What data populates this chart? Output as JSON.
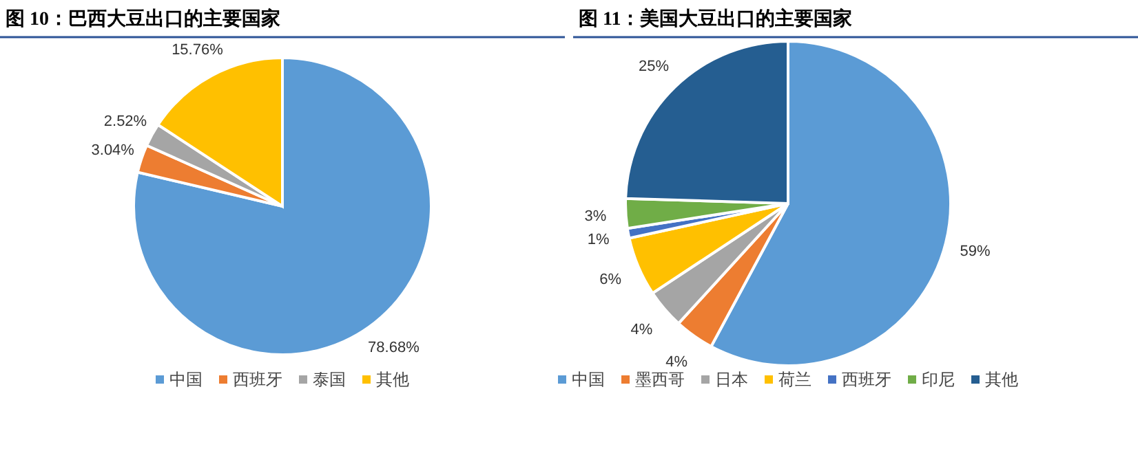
{
  "chart_data": [
    {
      "type": "pie",
      "title": "图 10：巴西大豆出口的主要国家",
      "categories": [
        "中国",
        "西班牙",
        "泰国",
        "其他"
      ],
      "values": [
        78.68,
        3.04,
        2.52,
        15.76
      ],
      "colors": [
        "#5b9bd5",
        "#ed7d31",
        "#a5a5a5",
        "#ffc000"
      ],
      "value_labels": [
        "78.68%",
        "3.04%",
        "2.52%",
        "15.76%"
      ],
      "legend": "bottom"
    },
    {
      "type": "pie",
      "title": "图 11：美国大豆出口的主要国家",
      "categories": [
        "中国",
        "墨西哥",
        "日本",
        "荷兰",
        "西班牙",
        "印尼",
        "其他"
      ],
      "values": [
        59,
        4,
        4,
        6,
        1,
        3,
        25
      ],
      "colors": [
        "#5b9bd5",
        "#ed7d31",
        "#a5a5a5",
        "#ffc000",
        "#4472c4",
        "#70ad47",
        "#255e91"
      ],
      "value_labels": [
        "59%",
        "4%",
        "4%",
        "6%",
        "1%",
        "3%",
        "25%"
      ],
      "legend": "bottom"
    }
  ]
}
